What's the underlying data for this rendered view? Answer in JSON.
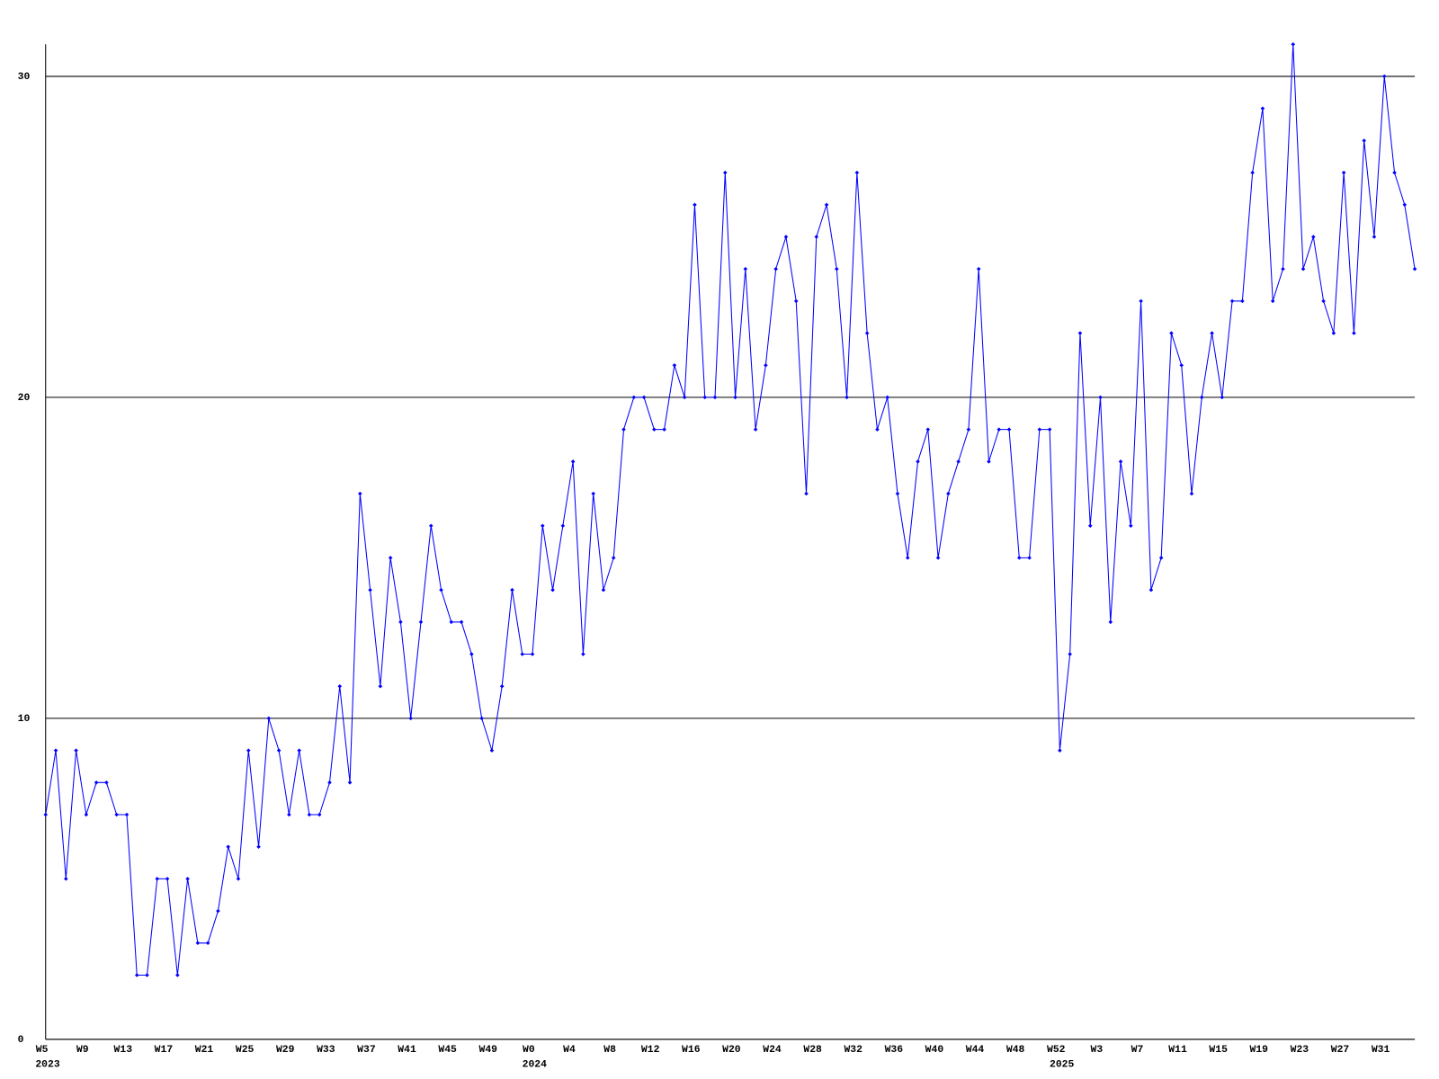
{
  "chart_data": {
    "type": "line",
    "categories": [
      "W5",
      null,
      null,
      null,
      "W9",
      null,
      null,
      null,
      "W13",
      null,
      null,
      null,
      "W17",
      null,
      null,
      null,
      "W21",
      null,
      null,
      null,
      "W25",
      null,
      null,
      null,
      "W29",
      null,
      null,
      null,
      "W33",
      null,
      null,
      null,
      "W37",
      null,
      null,
      null,
      "W41",
      null,
      null,
      null,
      "W45",
      null,
      null,
      null,
      "W49",
      null,
      null,
      null,
      "W0",
      null,
      null,
      null,
      "W4",
      null,
      null,
      null,
      "W8",
      null,
      null,
      null,
      "W12",
      null,
      null,
      null,
      "W16",
      null,
      null,
      null,
      "W20",
      null,
      null,
      null,
      "W24",
      null,
      null,
      null,
      "W28",
      null,
      null,
      null,
      "W32",
      null,
      null,
      null,
      "W36",
      null,
      null,
      null,
      "W40",
      null,
      null,
      null,
      "W44",
      null,
      null,
      null,
      "W48",
      null,
      null,
      null,
      "W52",
      null,
      null,
      null,
      "W3",
      null,
      null,
      null,
      "W7",
      null,
      null,
      null,
      "W11",
      null,
      null,
      null,
      "W15",
      null,
      null,
      null,
      "W19",
      null,
      null,
      null,
      "W23",
      null,
      null,
      null,
      "W27",
      null,
      null,
      null,
      "W31",
      null,
      null,
      null
    ],
    "years": [
      "2023",
      null,
      null,
      null,
      null,
      null,
      null,
      null,
      null,
      null,
      null,
      null,
      null,
      null,
      null,
      null,
      null,
      null,
      null,
      null,
      null,
      null,
      null,
      null,
      null,
      null,
      null,
      null,
      null,
      null,
      null,
      null,
      null,
      null,
      null,
      null,
      null,
      null,
      null,
      null,
      null,
      null,
      null,
      null,
      null,
      null,
      null,
      null,
      "2024",
      null,
      null,
      null,
      null,
      null,
      null,
      null,
      null,
      null,
      null,
      null,
      null,
      null,
      null,
      null,
      null,
      null,
      null,
      null,
      null,
      null,
      null,
      null,
      null,
      null,
      null,
      null,
      null,
      null,
      null,
      null,
      null,
      null,
      null,
      null,
      null,
      null,
      null,
      null,
      null,
      null,
      null,
      null,
      null,
      null,
      null,
      null,
      null,
      null,
      null,
      null,
      "2025",
      null,
      null,
      null,
      null,
      null,
      null,
      null,
      null,
      null,
      null,
      null,
      null,
      null,
      null,
      null,
      null,
      null,
      null,
      null,
      null,
      null,
      null,
      null,
      null,
      null,
      null,
      null,
      null,
      null,
      null,
      null,
      null,
      null,
      null,
      null
    ],
    "values": [
      7,
      9,
      5,
      9,
      7,
      8,
      8,
      7,
      7,
      2,
      2,
      5,
      5,
      2,
      5,
      3,
      3,
      4,
      6,
      5,
      9,
      6,
      10,
      9,
      7,
      9,
      7,
      7,
      8,
      11,
      8,
      17,
      14,
      11,
      15,
      13,
      10,
      13,
      16,
      14,
      13,
      13,
      12,
      10,
      9,
      11,
      14,
      12,
      12,
      16,
      14,
      16,
      18,
      12,
      17,
      14,
      15,
      19,
      20,
      20,
      19,
      19,
      21,
      20,
      26,
      20,
      20,
      27,
      20,
      24,
      19,
      21,
      24,
      25,
      23,
      17,
      25,
      26,
      24,
      20,
      27,
      22,
      19,
      20,
      17,
      15,
      18,
      19,
      15,
      17,
      18,
      19,
      24,
      18,
      19,
      19,
      15,
      15,
      19,
      19,
      9,
      12,
      22,
      16,
      20,
      13,
      18,
      16,
      23,
      14,
      15,
      22,
      21,
      17,
      20,
      22,
      20,
      23,
      23,
      27,
      29,
      23,
      24,
      31,
      24,
      25,
      23,
      22,
      27,
      22,
      28,
      25,
      30,
      27,
      26,
      24
    ],
    "color": "#0000ff",
    "ylim": [
      0,
      31
    ],
    "yticks": [
      0,
      10,
      20,
      30
    ],
    "grid": true
  }
}
